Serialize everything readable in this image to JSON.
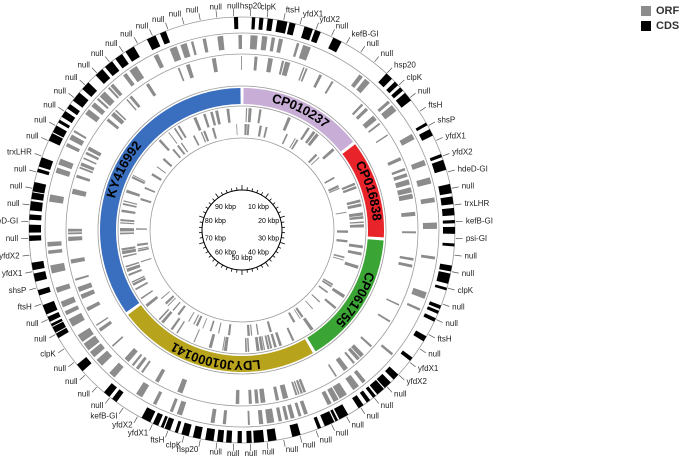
{
  "legend": {
    "items": [
      {
        "label": "ORF",
        "color": "#8c8c8c"
      },
      {
        "label": "CDS",
        "color": "#000000"
      }
    ]
  },
  "colors": {
    "cds": "#000000",
    "orf": "#8c8c8c",
    "ring_line": "#9a9a9a",
    "label_text": "#222222"
  },
  "genomes": [
    {
      "name": "CP010237",
      "color": "#c8aed6"
    },
    {
      "name": "CP016838",
      "color": "#e8232a"
    },
    {
      "name": "CP061755",
      "color": "#3aa535"
    },
    {
      "name": "LDYJ01000141",
      "color": "#b8a31d"
    },
    {
      "name": "KY416992",
      "color": "#3a6fc0"
    }
  ],
  "genome_fractions": [
    0.145,
    0.115,
    0.155,
    0.235,
    0.35
  ],
  "scale": {
    "unit": "kbp",
    "ticks": [
      "10 kbp",
      "20 kbp",
      "30 kbp",
      "40 kbp",
      "50 kbp",
      "60 kbp",
      "70 kbp",
      "80 kbp",
      "90 kbp"
    ]
  },
  "gene_labels": [
    "hsp20",
    "clpK",
    "ftsH",
    "yfdX1",
    "yfdX2",
    "null",
    "kefB-GI",
    "null",
    "null",
    "hsp20",
    "clpK",
    "null",
    "ftsH",
    "shsP",
    "yfdX1",
    "yfdX2",
    "hdeD-GI",
    "null",
    "trxLHR",
    "kefB-GI",
    "psi-GI",
    "null",
    "null",
    "clpK",
    "null",
    "null",
    "ftsH",
    "null",
    "yfdX1",
    "yfdX2",
    "null",
    "null",
    "null",
    "null",
    "null",
    "null",
    "null",
    "null",
    "null",
    "null",
    "null",
    "null",
    "hsp20",
    "clpK",
    "ftsH",
    "yfdX1",
    "yfdX2",
    "kefB-GI",
    "null",
    "null",
    "null",
    "null",
    "clpK",
    "null",
    "null",
    "ftsH",
    "shsP",
    "yfdX1",
    "yfdX2",
    "null",
    "hdeD-GI",
    "null",
    "null",
    "null",
    "trxLHR",
    "null",
    "null",
    "null",
    "null",
    "null",
    "null",
    "null",
    "null",
    "null",
    "null",
    "null",
    "null",
    "null",
    "null",
    "null"
  ]
}
